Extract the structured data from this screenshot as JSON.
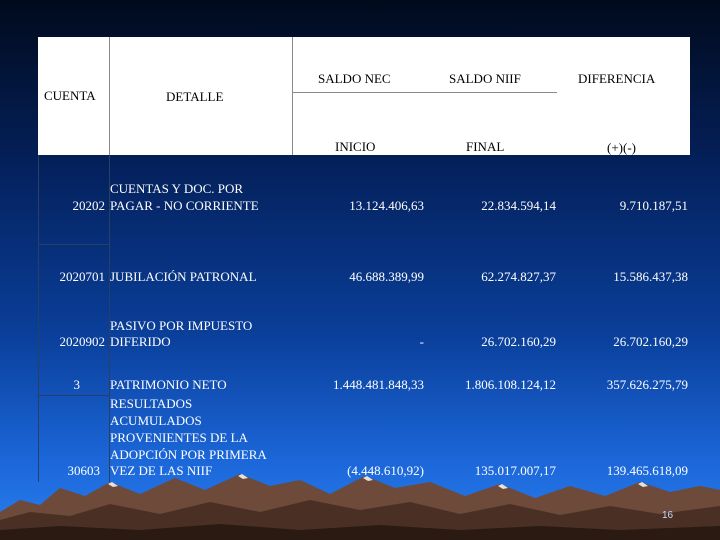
{
  "header": {
    "cuenta": "CUENTA",
    "detalle": "DETALLE",
    "saldo_nec": "SALDO NEC",
    "saldo_niif": "SALDO NIIF",
    "diferencia": "DIFERENCIA",
    "inicio": "INICIO",
    "final": "FINAL",
    "signo": "(+)(-)"
  },
  "rows": [
    {
      "cuenta": "20202",
      "detalle_l1": "CUENTAS Y DOC. POR",
      "detalle_l2": "PAGAR - NO CORRIENTE",
      "inicio": "13.124.406,63",
      "final": "22.834.594,14",
      "diferencia": "9.710.187,51"
    },
    {
      "cuenta": "2020701",
      "detalle_l1": "JUBILACIÓN PATRONAL",
      "inicio": "46.688.389,99",
      "final": "62.274.827,37",
      "diferencia": "15.586.437,38"
    },
    {
      "cuenta": "2020902",
      "detalle_l1": "PASIVO POR IMPUESTO",
      "detalle_l2": "DIFERIDO",
      "inicio": "-",
      "final": "26.702.160,29",
      "diferencia": "26.702.160,29"
    },
    {
      "cuenta": "3",
      "detalle_l1": "PATRIMONIO NETO",
      "inicio": "1.448.481.848,33",
      "final": "1.806.108.124,12",
      "diferencia": "357.626.275,79"
    },
    {
      "cuenta": "30603",
      "detalle_l1": "RESULTADOS",
      "detalle_l2": "ACUMULADOS",
      "detalle_l3": "PROVENIENTES DE LA",
      "detalle_l4": "ADOPCIÓN POR PRIMERA",
      "detalle_l5": "VEZ DE LAS NIIF",
      "inicio": "(4.448.610,92)",
      "final": "135.017.007,17",
      "diferencia": "139.465.618,09"
    }
  ],
  "footer": {
    "page_number": "16"
  }
}
